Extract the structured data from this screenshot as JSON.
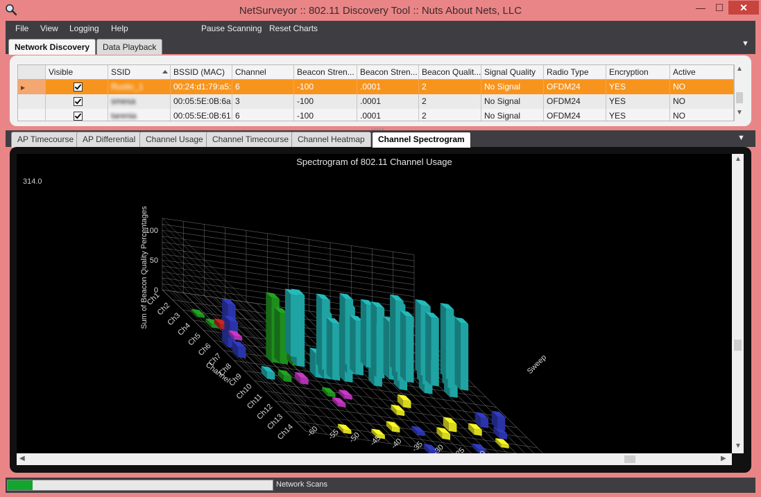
{
  "window": {
    "title": "NetSurveyor :: 802.11 Discovery Tool :: Nuts About Nets, LLC",
    "minimize_glyph": "—",
    "maximize_glyph": "☐",
    "close_glyph": "✕"
  },
  "menu": {
    "items": [
      "File",
      "View",
      "Logging",
      "Help",
      "Pause Scanning",
      "Reset Charts"
    ]
  },
  "top_tabs": {
    "items": [
      "Network Discovery",
      "Data Playback"
    ],
    "active": "Network Discovery"
  },
  "table": {
    "columns": [
      "Visible",
      "SSID",
      "BSSID (MAC)",
      "Channel",
      "Beacon Stren...",
      "Beacon Stren...",
      "Beacon Qualit...",
      "Signal Quality",
      "Radio Type",
      "Encryption",
      "Active"
    ],
    "rows": [
      {
        "visible": true,
        "ssid": "Rustic_1",
        "bssid": "00:24:d1:79:a5:...",
        "channel": "6",
        "beacon_strength": "-100",
        "beacon_strength2": ".0001",
        "beacon_quality": "2",
        "signal_quality": "No Signal",
        "radio_type": "OFDM24",
        "encryption": "YES",
        "active": "NO"
      },
      {
        "visible": true,
        "ssid": "smesa",
        "bssid": "00:05:5E:0B:6a...",
        "channel": "3",
        "beacon_strength": "-100",
        "beacon_strength2": ".0001",
        "beacon_quality": "2",
        "signal_quality": "No Signal",
        "radio_type": "OFDM24",
        "encryption": "YES",
        "active": "NO"
      },
      {
        "visible": true,
        "ssid": "tarenia",
        "bssid": "00:05:5E:0B:61...",
        "channel": "6",
        "beacon_strength": "-100",
        "beacon_strength2": ".0001",
        "beacon_quality": "2",
        "signal_quality": "No Signal",
        "radio_type": "OFDM24",
        "encryption": "YES",
        "active": "NO"
      }
    ]
  },
  "chart_tabs": {
    "items": [
      "AP Timecourse",
      "AP Differential",
      "Channel Usage",
      "Channel Timecourse",
      "Channel Heatmap",
      "Channel Spectrogram"
    ],
    "active": "Channel Spectrogram"
  },
  "chart": {
    "readout": "314.0"
  },
  "chart_data": {
    "type": "bar",
    "title": "Spectrogram of 802.11 Channel Usage",
    "ylabel": "Sum of Beacon Quality Percentages",
    "xlabel": "Channel",
    "zlabel": "Sweep",
    "y_ticks": [
      "0",
      "50",
      "100"
    ],
    "categories": [
      "Ch1",
      "Ch2",
      "Ch3",
      "Ch4",
      "Ch5",
      "Ch6",
      "Ch7",
      "Ch8",
      "Ch9",
      "Ch10",
      "Ch11",
      "Ch12",
      "Ch13",
      "Ch14"
    ],
    "sweep_ticks": [
      "-5",
      "-10",
      "-15",
      "-20",
      "-25",
      "-30",
      "-35",
      "-40",
      "-45",
      "-50",
      "-55",
      "-60"
    ],
    "colors": {
      "background": "#000000",
      "grid": "#8a8a8a",
      "teal": "#1fa3a3",
      "green": "#1e8f1e",
      "blue": "#2a34a8",
      "yellow": "#d8d820",
      "magenta": "#b030b0",
      "red": "#b02020"
    },
    "ylim": [
      0,
      120
    ]
  },
  "status": {
    "label": "Network Scans",
    "progress": 0.095
  }
}
